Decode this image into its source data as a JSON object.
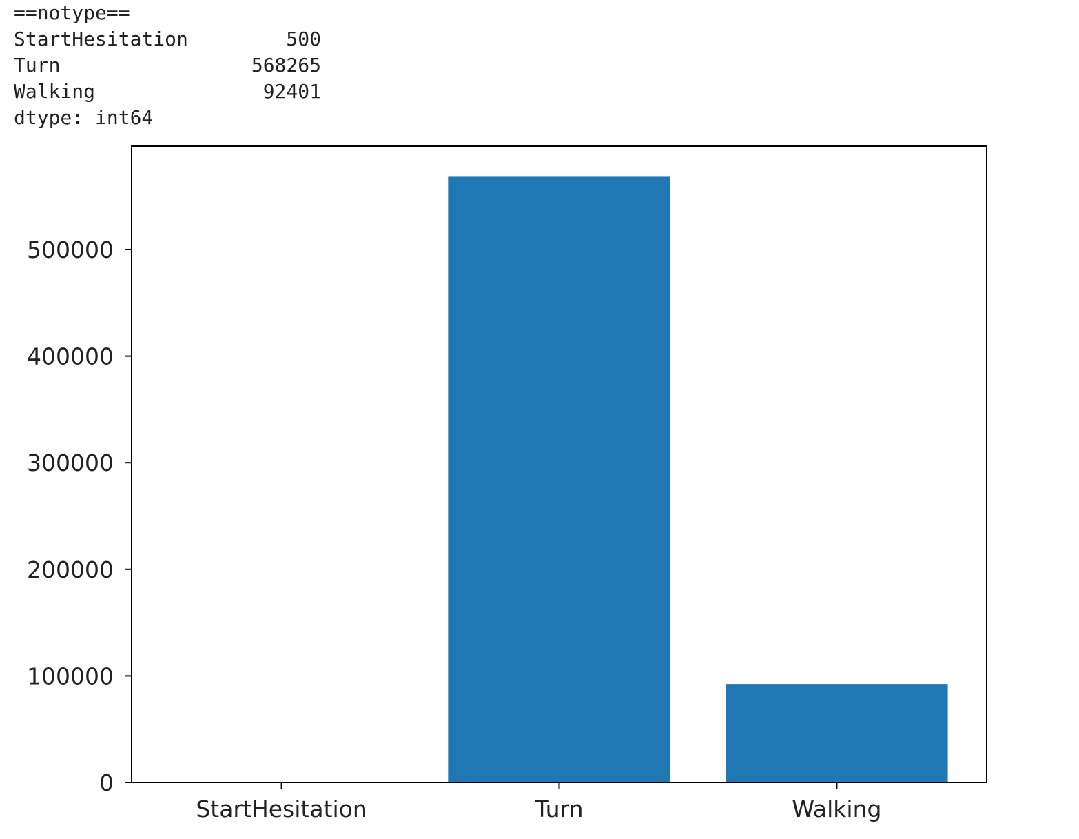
{
  "console": {
    "header": "==notype==",
    "rows": [
      {
        "key": "StartHesitation",
        "value": "500"
      },
      {
        "key": "Turn",
        "value": "568265"
      },
      {
        "key": "Walking",
        "value": "92401"
      }
    ],
    "footer": "dtype: int64"
  },
  "chart_data": {
    "type": "bar",
    "categories": [
      "StartHesitation",
      "Turn",
      "Walking"
    ],
    "values": [
      500,
      568265,
      92401
    ],
    "title": "",
    "xlabel": "",
    "ylabel": "",
    "ylim": [
      0,
      597000
    ],
    "yticks": [
      0,
      100000,
      200000,
      300000,
      400000,
      500000
    ],
    "bar_color": "#1f77b4",
    "grid": false
  }
}
